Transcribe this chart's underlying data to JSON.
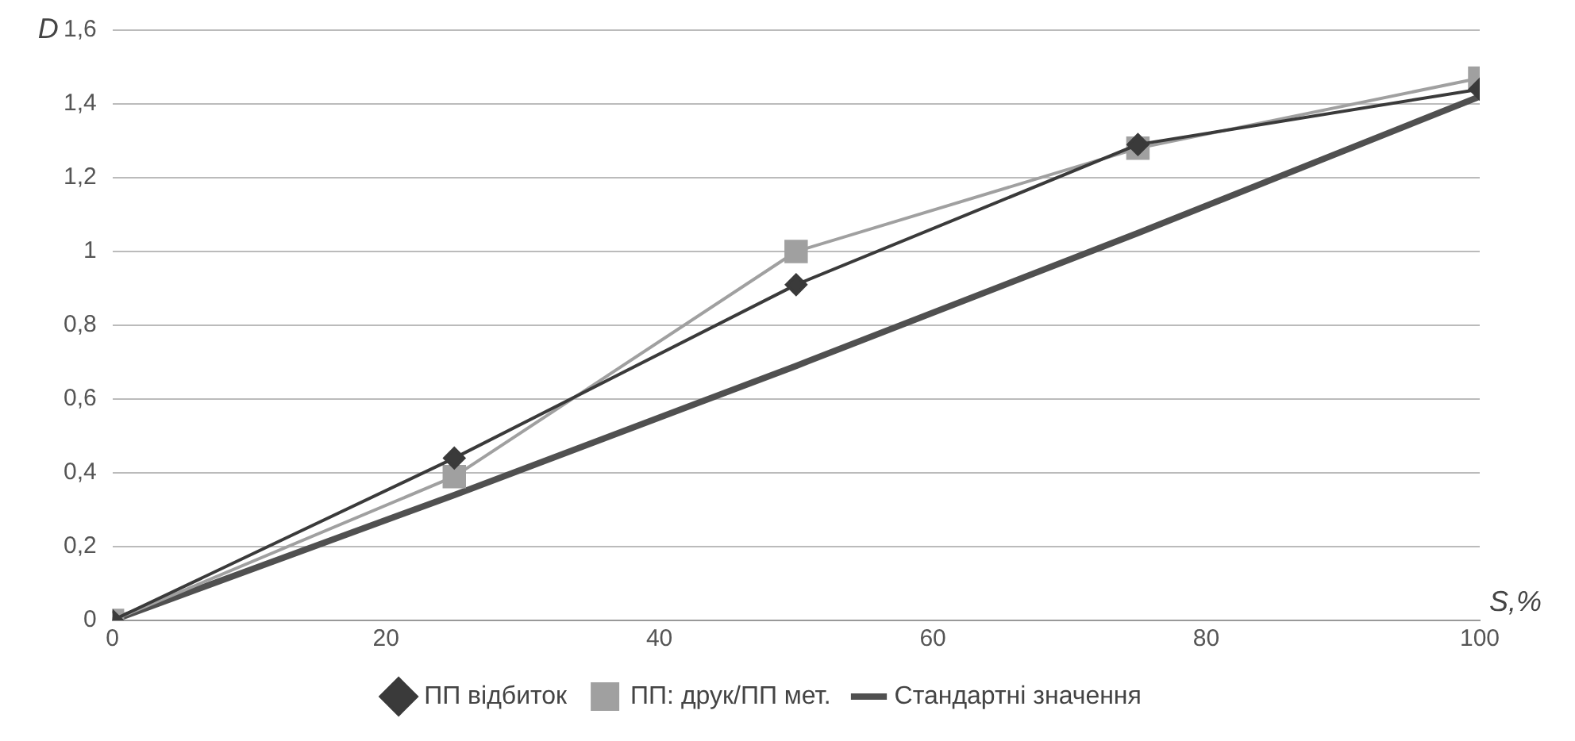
{
  "chart_data": {
    "type": "line",
    "xlabel": "S,%",
    "ylabel": "D",
    "x": [
      0,
      25,
      50,
      75,
      100
    ],
    "series": [
      {
        "name": "ПП відбиток",
        "color": "#3a3a3a",
        "marker": "diamond",
        "values": [
          0,
          0.44,
          0.91,
          1.29,
          1.44
        ]
      },
      {
        "name": "ПП: друк/ПП мет.",
        "color": "#a0a0a0",
        "marker": "square",
        "values": [
          0,
          0.39,
          1.0,
          1.28,
          1.47
        ]
      },
      {
        "name": "Стандартні значення",
        "color": "#505050",
        "marker": "none",
        "values": [
          0,
          0.34,
          0.69,
          1.05,
          1.42
        ]
      }
    ],
    "xlim": [
      0,
      100
    ],
    "xticks": [
      0,
      20,
      40,
      60,
      80,
      100
    ],
    "ylim": [
      0,
      1.6
    ],
    "yticks": [
      0,
      {
        "value": 0.2,
        "label": "0,2"
      },
      {
        "value": 0.4,
        "label": "0,4"
      },
      {
        "value": 0.6,
        "label": "0,6"
      },
      {
        "value": 0.8,
        "label": "0,8"
      },
      1,
      {
        "value": 1.2,
        "label": "1,2"
      },
      {
        "value": 1.4,
        "label": "1,4"
      },
      {
        "value": 1.6,
        "label": "1,6"
      }
    ],
    "grid": "y",
    "legend": "bottom"
  }
}
